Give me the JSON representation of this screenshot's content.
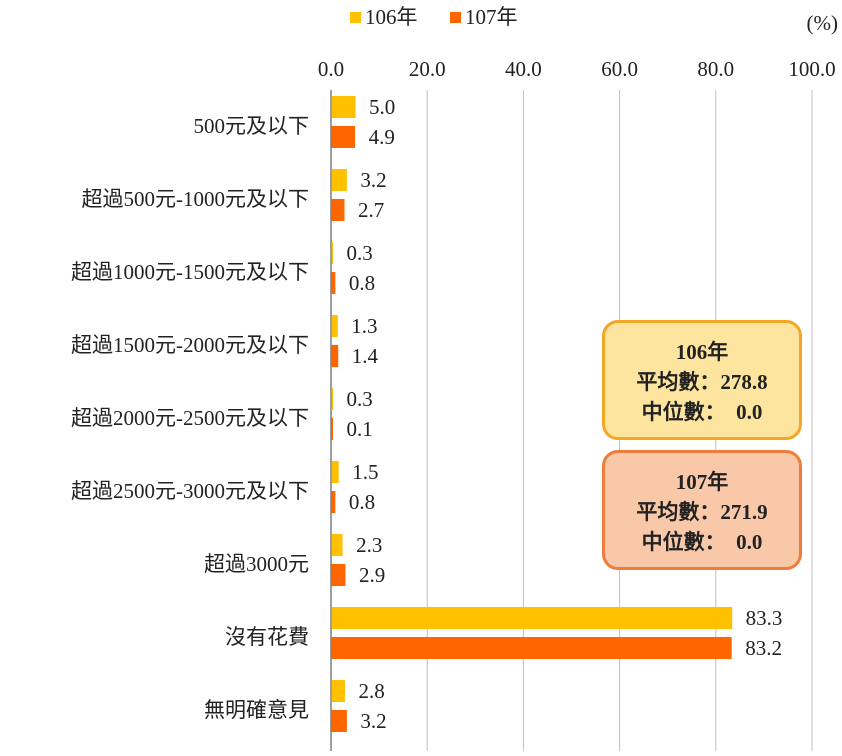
{
  "chart_data": {
    "type": "bar",
    "orientation": "horizontal",
    "unit_label": "(%)",
    "xlim": [
      0,
      100
    ],
    "ticks": [
      "0.0",
      "20.0",
      "40.0",
      "60.0",
      "80.0",
      "100.0"
    ],
    "tick_values": [
      0,
      20,
      40,
      60,
      80,
      100
    ],
    "categories": [
      "500元及以下",
      "超過500元-1000元及以下",
      "超過1000元-1500元及以下",
      "超過1500元-2000元及以下",
      "超過2000元-2500元及以下",
      "超過2500元-3000元及以下",
      "超過3000元",
      "沒有花費",
      "無明確意見"
    ],
    "series": [
      {
        "name": "106年",
        "color": "#ffc000",
        "values": [
          5.0,
          3.2,
          0.3,
          1.3,
          0.3,
          1.5,
          2.3,
          83.3,
          2.8
        ],
        "labels": [
          "5.0",
          "3.2",
          "0.3",
          "1.3",
          "0.3",
          "1.5",
          "2.3",
          "83.3",
          "2.8"
        ]
      },
      {
        "name": "107年",
        "color": "#ff6600",
        "values": [
          4.9,
          2.7,
          0.8,
          1.4,
          0.1,
          0.8,
          2.9,
          83.2,
          3.2
        ],
        "labels": [
          "4.9",
          "2.7",
          "0.8",
          "1.4",
          "0.1",
          "0.8",
          "2.9",
          "83.2",
          "3.2"
        ]
      }
    ],
    "legend_position": "top",
    "grid": true
  },
  "stats": {
    "y106": {
      "title": "106年",
      "mean": "平均數：278.8",
      "median": "中位數：  0.0"
    },
    "y107": {
      "title": "107年",
      "mean": "平均數：271.9",
      "median": "中位數：  0.0"
    }
  },
  "colors": {
    "grid": "#bfbfbf",
    "axis": "#7f7f7f",
    "text": "#222222"
  }
}
